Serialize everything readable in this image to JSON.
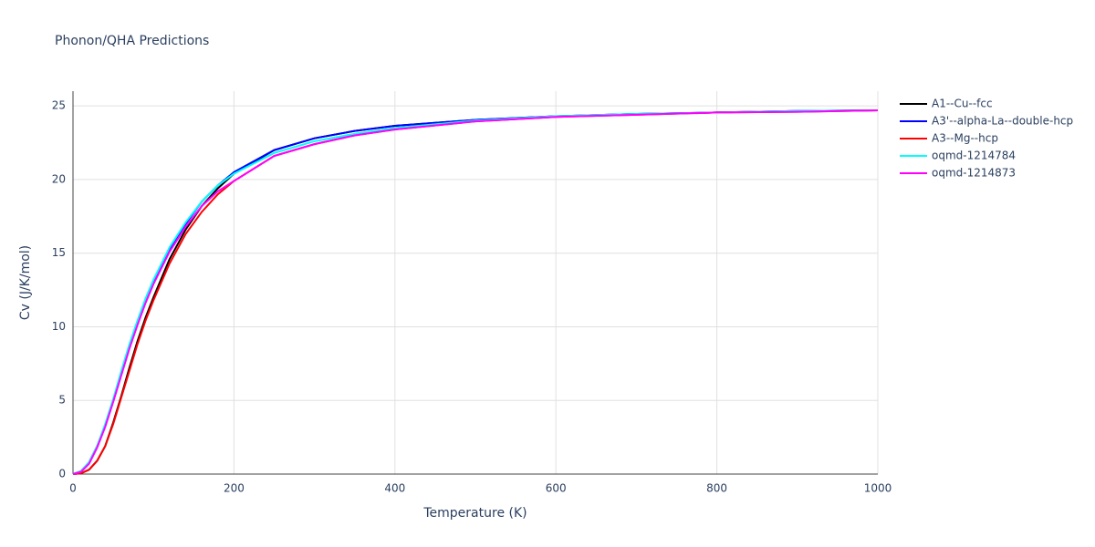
{
  "chart_data": {
    "type": "line",
    "title": "Phonon/QHA Predictions",
    "x_label": "Temperature (K)",
    "y_label": "Cv (J/K/mol)",
    "x": [
      0,
      10,
      20,
      30,
      40,
      50,
      60,
      70,
      80,
      90,
      100,
      120,
      140,
      160,
      180,
      200,
      250,
      300,
      350,
      400,
      500,
      600,
      700,
      800,
      900,
      1000
    ],
    "series": [
      {
        "name": "A1--Cu--fcc",
        "color": "#000000",
        "values": [
          0,
          0.05,
          0.3,
          0.9,
          1.9,
          3.5,
          5.3,
          7.2,
          9.0,
          10.6,
          12.0,
          14.6,
          16.6,
          18.2,
          19.4,
          20.4,
          22.0,
          22.8,
          23.3,
          23.65,
          24.05,
          24.3,
          24.45,
          24.55,
          24.65,
          24.7
        ]
      },
      {
        "name": "A3'--alpha-La--double-hcp",
        "color": "#0000ff",
        "values": [
          0,
          0.2,
          0.8,
          1.9,
          3.3,
          5.0,
          6.9,
          8.7,
          10.3,
          11.8,
          13.1,
          15.3,
          17.0,
          18.5,
          19.6,
          20.5,
          22.0,
          22.8,
          23.3,
          23.65,
          24.05,
          24.3,
          24.45,
          24.55,
          24.65,
          24.7
        ]
      },
      {
        "name": "A3--Mg--hcp",
        "color": "#ff0000",
        "values": [
          0,
          0.05,
          0.3,
          0.9,
          1.9,
          3.4,
          5.2,
          7.0,
          8.8,
          10.4,
          11.8,
          14.3,
          16.3,
          17.8,
          19.0,
          19.9,
          21.6,
          22.4,
          23.0,
          23.4,
          23.95,
          24.25,
          24.4,
          24.55,
          24.6,
          24.7
        ]
      },
      {
        "name": "oqmd-1214784",
        "color": "#00ffff",
        "values": [
          0,
          0.2,
          0.8,
          1.9,
          3.4,
          5.1,
          7.0,
          8.8,
          10.4,
          11.9,
          13.2,
          15.4,
          17.1,
          18.5,
          19.6,
          20.4,
          21.8,
          22.6,
          23.1,
          23.5,
          24.0,
          24.3,
          24.45,
          24.55,
          24.65,
          24.7
        ]
      },
      {
        "name": "oqmd-1214873",
        "color": "#ff00ff",
        "values": [
          0,
          0.15,
          0.7,
          1.8,
          3.2,
          4.9,
          6.7,
          8.5,
          10.1,
          11.6,
          12.9,
          15.1,
          16.8,
          18.2,
          19.2,
          19.9,
          21.6,
          22.4,
          23.0,
          23.4,
          23.95,
          24.25,
          24.4,
          24.55,
          24.6,
          24.7
        ]
      }
    ],
    "xlim": [
      0,
      1000
    ],
    "ylim": [
      0,
      26
    ],
    "xticks": [
      0,
      200,
      400,
      600,
      800,
      1000
    ],
    "yticks": [
      0,
      5,
      10,
      15,
      20,
      25
    ],
    "grid": true
  }
}
